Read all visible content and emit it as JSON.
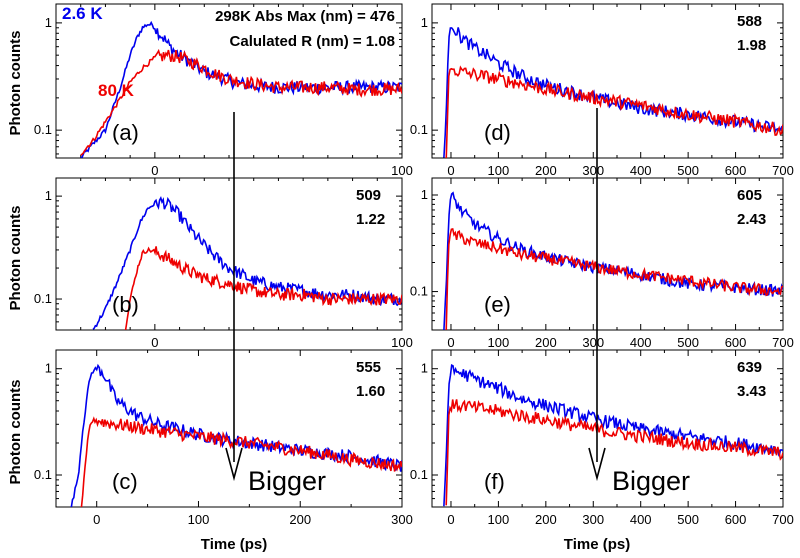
{
  "labels": {
    "ylabel": "Photon counts",
    "xlabel": "Time (ps)",
    "header_line1": "298K Abs Max (nm) = 476",
    "header_line2": "Calulated R (nm) = 1.08",
    "legend_blue": "2.6 K",
    "legend_red": "80 K",
    "arrow_text": "Bigger"
  },
  "colors": {
    "blue": "#0000ee",
    "red": "#ee0000"
  },
  "chart_data": [
    {
      "id": "a",
      "type": "line",
      "panel_label": "(a)",
      "abs_max_nm": "",
      "R": "",
      "xlim": [
        -40,
        100
      ],
      "xticks": [
        0,
        100
      ],
      "ylim": [
        0.055,
        1.5
      ],
      "ylog": true,
      "yticks": [
        0.1,
        1
      ],
      "ytick_labels": [
        "0.1",
        "1"
      ],
      "series": [
        {
          "name": "2.6 K",
          "color": "blue",
          "x": [
            -30,
            -20,
            -14,
            -10,
            -7,
            -5,
            -3,
            -1,
            0,
            2,
            4,
            6,
            10,
            15,
            20,
            25,
            30,
            35,
            40,
            50,
            60,
            70,
            80,
            90,
            100
          ],
          "y": [
            0.055,
            0.1,
            0.25,
            0.5,
            0.75,
            0.9,
            0.97,
            0.96,
            0.9,
            0.8,
            0.7,
            0.6,
            0.5,
            0.42,
            0.35,
            0.32,
            0.29,
            0.27,
            0.26,
            0.25,
            0.25,
            0.25,
            0.25,
            0.25,
            0.25
          ]
        },
        {
          "name": "80 K",
          "color": "red",
          "x": [
            -30,
            -25,
            -20,
            -15,
            -10,
            -5,
            0,
            5,
            10,
            15,
            20,
            25,
            30,
            40,
            50,
            60,
            70,
            80,
            90,
            100
          ],
          "y": [
            0.06,
            0.08,
            0.12,
            0.18,
            0.28,
            0.38,
            0.47,
            0.5,
            0.48,
            0.43,
            0.38,
            0.33,
            0.3,
            0.27,
            0.25,
            0.25,
            0.25,
            0.24,
            0.24,
            0.24
          ]
        }
      ]
    },
    {
      "id": "b",
      "type": "line",
      "panel_label": "(b)",
      "abs_max_nm": "509",
      "R": "1.22",
      "xlim": [
        -40,
        100
      ],
      "xticks": [
        0,
        100
      ],
      "ylim": [
        0.05,
        1.5
      ],
      "ylog": true,
      "yticks": [
        0.1,
        1
      ],
      "ytick_labels": [
        "0.1",
        "1"
      ],
      "series": [
        {
          "name": "2.6 K",
          "color": "blue",
          "x": [
            -25,
            -20,
            -15,
            -10,
            -6,
            -3,
            0,
            3,
            6,
            10,
            15,
            20,
            25,
            30,
            40,
            50,
            60,
            70,
            80,
            90,
            100
          ],
          "y": [
            0.05,
            0.08,
            0.15,
            0.3,
            0.55,
            0.75,
            0.85,
            0.88,
            0.8,
            0.65,
            0.45,
            0.33,
            0.25,
            0.2,
            0.15,
            0.13,
            0.12,
            0.11,
            0.11,
            0.1,
            0.1
          ]
        },
        {
          "name": "80 K",
          "color": "red",
          "x": [
            -12,
            -10,
            -7,
            -5,
            -3,
            0,
            5,
            10,
            15,
            20,
            30,
            40,
            50,
            60,
            70,
            80,
            90,
            100
          ],
          "y": [
            0.05,
            0.1,
            0.2,
            0.28,
            0.3,
            0.29,
            0.25,
            0.21,
            0.18,
            0.16,
            0.14,
            0.12,
            0.11,
            0.11,
            0.1,
            0.1,
            0.1,
            0.1
          ]
        }
      ]
    },
    {
      "id": "c",
      "type": "line",
      "panel_label": "(c)",
      "abs_max_nm": "555",
      "R": "1.60",
      "xlim": [
        -40,
        300
      ],
      "xticks": [
        0,
        100,
        200,
        300
      ],
      "ylim": [
        0.05,
        1.5
      ],
      "ylog": true,
      "yticks": [
        0.1,
        1
      ],
      "ytick_labels": [
        "0.1",
        "1"
      ],
      "series": [
        {
          "name": "2.6 K",
          "color": "blue",
          "x": [
            -25,
            -18,
            -14,
            -10,
            -7,
            -4,
            0,
            5,
            10,
            15,
            20,
            30,
            40,
            60,
            80,
            100,
            120,
            150,
            200,
            250,
            300
          ],
          "y": [
            0.05,
            0.1,
            0.25,
            0.5,
            0.8,
            0.95,
            1.0,
            0.95,
            0.8,
            0.6,
            0.5,
            0.42,
            0.36,
            0.3,
            0.27,
            0.24,
            0.22,
            0.2,
            0.17,
            0.15,
            0.12
          ]
        },
        {
          "name": "80 K",
          "color": "red",
          "x": [
            -15,
            -12,
            -9,
            -7,
            -5,
            0,
            5,
            10,
            20,
            30,
            50,
            100,
            150,
            200,
            250,
            300
          ],
          "y": [
            0.05,
            0.1,
            0.2,
            0.28,
            0.32,
            0.33,
            0.32,
            0.31,
            0.3,
            0.29,
            0.27,
            0.23,
            0.2,
            0.17,
            0.14,
            0.12
          ]
        }
      ]
    },
    {
      "id": "d",
      "type": "line",
      "panel_label": "(d)",
      "abs_max_nm": "588",
      "R": "1.98",
      "xlim": [
        -40,
        700
      ],
      "xticks": [
        0,
        100,
        200,
        300,
        400,
        500,
        600,
        700
      ],
      "ylim": [
        0.055,
        1.5
      ],
      "ylog": true,
      "yticks": [
        0.1,
        1
      ],
      "ytick_labels": [
        "0.1",
        "1"
      ],
      "series": [
        {
          "name": "2.6 K",
          "color": "blue",
          "x": [
            -15,
            -10,
            -6,
            -3,
            0,
            5,
            10,
            20,
            30,
            50,
            75,
            100,
            150,
            200,
            250,
            300,
            400,
            500,
            600,
            700
          ],
          "y": [
            0.055,
            0.15,
            0.5,
            0.85,
            1.0,
            0.95,
            0.85,
            0.75,
            0.68,
            0.58,
            0.5,
            0.42,
            0.32,
            0.26,
            0.23,
            0.2,
            0.16,
            0.14,
            0.12,
            0.1
          ]
        },
        {
          "name": "80 K",
          "color": "red",
          "x": [
            -10,
            -7,
            -5,
            -3,
            0,
            10,
            20,
            50,
            100,
            150,
            200,
            300,
            400,
            500,
            600,
            700
          ],
          "y": [
            0.055,
            0.15,
            0.3,
            0.35,
            0.37,
            0.36,
            0.35,
            0.33,
            0.3,
            0.27,
            0.24,
            0.2,
            0.17,
            0.14,
            0.12,
            0.1
          ]
        }
      ]
    },
    {
      "id": "e",
      "type": "line",
      "panel_label": "(e)",
      "abs_max_nm": "605",
      "R": "2.43",
      "xlim": [
        -40,
        700
      ],
      "xticks": [
        0,
        100,
        200,
        300,
        400,
        500,
        600,
        700
      ],
      "ylim": [
        0.04,
        1.5
      ],
      "ylog": true,
      "yticks": [
        0.1,
        1
      ],
      "ytick_labels": [
        "0.1",
        "1"
      ],
      "series": [
        {
          "name": "2.6 K",
          "color": "blue",
          "x": [
            -15,
            -10,
            -6,
            -3,
            0,
            5,
            10,
            20,
            50,
            100,
            150,
            200,
            250,
            300,
            400,
            500,
            600,
            700
          ],
          "y": [
            0.04,
            0.12,
            0.4,
            0.8,
            0.95,
            0.93,
            0.85,
            0.7,
            0.5,
            0.35,
            0.27,
            0.23,
            0.2,
            0.18,
            0.15,
            0.12,
            0.11,
            0.1
          ]
        },
        {
          "name": "80 K",
          "color": "red",
          "x": [
            -10,
            -7,
            -5,
            -3,
            0,
            10,
            30,
            50,
            100,
            150,
            200,
            300,
            400,
            500,
            600,
            700
          ],
          "y": [
            0.04,
            0.15,
            0.3,
            0.38,
            0.4,
            0.38,
            0.35,
            0.32,
            0.28,
            0.24,
            0.22,
            0.18,
            0.15,
            0.13,
            0.11,
            0.1
          ]
        }
      ]
    },
    {
      "id": "f",
      "type": "line",
      "panel_label": "(f)",
      "abs_max_nm": "639",
      "R": "3.43",
      "xlim": [
        -40,
        700
      ],
      "xticks": [
        0,
        100,
        200,
        300,
        400,
        500,
        600,
        700
      ],
      "ylim": [
        0.05,
        1.5
      ],
      "ylog": true,
      "yticks": [
        0.1,
        1
      ],
      "ytick_labels": [
        "0.1",
        "1"
      ],
      "series": [
        {
          "name": "2.6 K",
          "color": "blue",
          "x": [
            -15,
            -10,
            -6,
            -3,
            0,
            10,
            30,
            50,
            100,
            150,
            200,
            300,
            400,
            500,
            600,
            700
          ],
          "y": [
            0.05,
            0.15,
            0.5,
            0.85,
            0.95,
            0.95,
            0.88,
            0.8,
            0.65,
            0.52,
            0.45,
            0.34,
            0.27,
            0.23,
            0.2,
            0.17
          ]
        },
        {
          "name": "80 K",
          "color": "red",
          "x": [
            -10,
            -7,
            -5,
            -3,
            0,
            10,
            30,
            50,
            100,
            150,
            200,
            300,
            400,
            500,
            600,
            700
          ],
          "y": [
            0.05,
            0.15,
            0.35,
            0.42,
            0.45,
            0.45,
            0.45,
            0.43,
            0.4,
            0.36,
            0.33,
            0.27,
            0.23,
            0.2,
            0.18,
            0.16
          ]
        }
      ]
    }
  ]
}
